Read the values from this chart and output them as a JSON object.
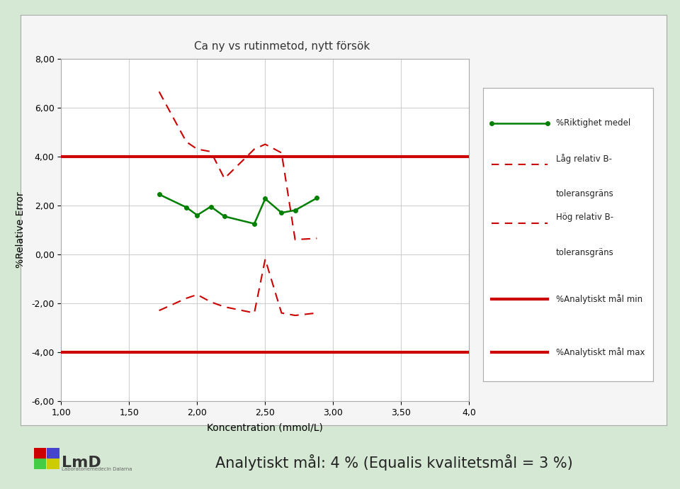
{
  "title": "Ca ny vs rutinmetod, nytt försök",
  "xlabel": "Koncentration (mmol/L)",
  "ylabel": "%Relative Error",
  "footer": "Analytiskt mål: 4 % (Equalis kvalitetsmål = 3 %)",
  "xlim": [
    1.0,
    4.0
  ],
  "ylim": [
    -6.0,
    8.0
  ],
  "yticks": [
    -6.0,
    -4.0,
    -2.0,
    0.0,
    2.0,
    4.0,
    6.0,
    8.0
  ],
  "xticks": [
    1.0,
    1.5,
    2.0,
    2.5,
    3.0,
    3.5,
    4.0
  ],
  "xtick_labels": [
    "1,00",
    "1,50",
    "2,00",
    "2,50",
    "3,00",
    "3,50",
    "4,0"
  ],
  "ytick_labels": [
    "-6,00",
    "-4,00",
    "-2,00",
    "0,00",
    "2,00",
    "4,00",
    "6,00",
    "8,00"
  ],
  "green_x": [
    1.72,
    1.92,
    2.0,
    2.1,
    2.2,
    2.42,
    2.5,
    2.62,
    2.72,
    2.88
  ],
  "green_y": [
    2.45,
    1.92,
    1.6,
    1.95,
    1.55,
    1.25,
    2.27,
    1.7,
    1.8,
    2.3
  ],
  "lag_x": [
    1.72,
    1.92,
    2.0,
    2.1,
    2.2,
    2.42,
    2.5,
    2.62,
    2.72,
    2.88
  ],
  "lag_y": [
    6.65,
    4.6,
    4.3,
    4.2,
    3.1,
    4.3,
    4.5,
    4.15,
    0.6,
    0.65
  ],
  "hog_x": [
    1.72,
    1.92,
    2.0,
    2.1,
    2.2,
    2.42,
    2.5,
    2.62,
    2.72,
    2.88
  ],
  "hog_y": [
    -2.3,
    -1.8,
    -1.65,
    -1.95,
    -2.15,
    -2.4,
    -0.2,
    -2.4,
    -2.5,
    -2.4
  ],
  "analytical_min": -4.0,
  "analytical_max": 4.0,
  "green_color": "#008000",
  "red_dashed_color": "#cc0000",
  "red_solid_color": "#cc0000",
  "background_outer": "#d5e8d4",
  "background_chart_border": "#f5f5f5",
  "background_inner": "#ffffff",
  "legend_entries_line1": [
    "%Riktighet medel",
    "Låg relativ B-",
    "Hög relativ B-",
    "%Analytiskt mål min",
    "%Analytiskt mål max"
  ],
  "legend_entries_line2": [
    "",
    "toleransgräns",
    "toleransgräns",
    "",
    ""
  ]
}
